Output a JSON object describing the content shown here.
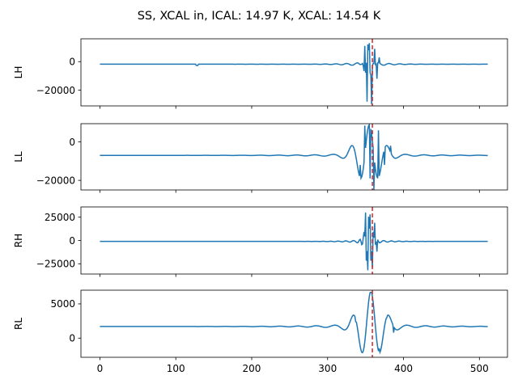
{
  "title": "SS, XCAL in, ICAL: 14.97 K, XCAL: 14.54 K",
  "chart_data": {
    "type": "line",
    "shared_x": true,
    "xlim": [
      -25,
      537
    ],
    "xticks": [
      0,
      100,
      200,
      300,
      400,
      500
    ],
    "line_color": "#1f77b4",
    "marker_color": "#d62728",
    "marker_style": "dashed",
    "center_marker_x": 359,
    "panels": [
      {
        "ylabel": "LH",
        "ylim": [
          -31000,
          16000
        ],
        "yticks": [
          0,
          -20000
        ],
        "tick_labels": [
          "0",
          "−20000"
        ],
        "baseline": -1800,
        "interferogram": {
          "center": 353,
          "amplitude": 12000,
          "period": 8,
          "decay": 4,
          "precursor_amp": 1800,
          "precursor_period": 14,
          "precursor_decay": 22,
          "notch_at": 128,
          "notch_depth": -900
        },
        "peak_points": [
          [
            345,
            -1800
          ],
          [
            349,
            11000
          ],
          [
            352,
            -28000
          ],
          [
            355,
            13000
          ],
          [
            358,
            -30000
          ],
          [
            362,
            9000
          ],
          [
            365,
            -12000
          ],
          [
            368,
            3000
          ]
        ]
      },
      {
        "ylabel": "LL",
        "ylim": [
          -25000,
          9500
        ],
        "yticks": [
          0,
          -20000
        ],
        "tick_labels": [
          "0",
          "−20000"
        ],
        "baseline": -7000,
        "interferogram": {
          "center": 355,
          "amplitude": 15000,
          "period": 24,
          "decay": 15,
          "precursor_amp": 1000,
          "precursor_period": 24,
          "precursor_decay": 60
        },
        "peak_points": [
          [
            343,
            -12000
          ],
          [
            349,
            8500
          ],
          [
            356,
            -19000
          ],
          [
            361,
            -25000
          ],
          [
            367,
            6000
          ],
          [
            375,
            -12000
          ],
          [
            383,
            -2000
          ]
        ]
      },
      {
        "ylabel": "RH",
        "ylim": [
          -36000,
          36000
        ],
        "yticks": [
          25000,
          0,
          -25000
        ],
        "tick_labels": [
          "25000",
          "0",
          "−25000"
        ],
        "baseline": -1000,
        "interferogram": {
          "center": 354,
          "amplitude": 24000,
          "period": 6,
          "decay": 5,
          "precursor_amp": 2500,
          "precursor_period": 10,
          "precursor_decay": 20
        },
        "peak_points": [
          [
            350,
            30000
          ],
          [
            353,
            -32000
          ],
          [
            356,
            28000
          ],
          [
            359,
            -29000
          ],
          [
            362,
            19000
          ],
          [
            365,
            -12000
          ]
        ]
      },
      {
        "ylabel": "RL",
        "ylim": [
          -2800,
          7000
        ],
        "yticks": [
          5000,
          0
        ],
        "tick_labels": [
          "5000",
          "0"
        ],
        "baseline": 1700,
        "interferogram": {
          "center": 357,
          "amplitude": 4800,
          "period": 24,
          "decay": 15,
          "precursor_amp": 350,
          "precursor_period": 24,
          "precursor_decay": 60
        },
        "peak_points": [
          [
            337,
            2400
          ],
          [
            347,
            -1900
          ],
          [
            357,
            6700
          ],
          [
            368,
            -1500
          ],
          [
            378,
            3000
          ],
          [
            387,
            800
          ]
        ]
      }
    ]
  }
}
